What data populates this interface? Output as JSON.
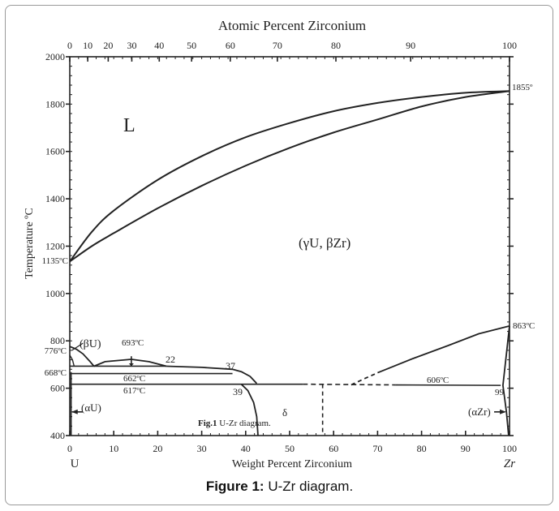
{
  "figure": {
    "top_axis_title": "Atomic Percent Zirconium",
    "bottom_axis_title": "Weight Percent Zirconium",
    "y_axis_title": "Temperature ºC",
    "left_element": "U",
    "right_element": "Zr",
    "inner_caption_bold": "Fig.1",
    "inner_caption_text": " U-Zr diagram.",
    "caption_label": "Figure 1:",
    "caption_text": " U-Zr diagram."
  },
  "chart_data": {
    "type": "phase-diagram",
    "x_bottom": {
      "label": "Weight Percent Zirconium",
      "range": [
        0,
        100
      ],
      "ticks": [
        "0",
        "10",
        "20",
        "30",
        "40",
        "50",
        "60",
        "70",
        "80",
        "90",
        "100"
      ]
    },
    "x_top": {
      "label": "Atomic Percent Zirconium",
      "ticks": [
        "0",
        "10",
        "20",
        "30",
        "40",
        "50",
        "60",
        "70",
        "80",
        "90",
        "100"
      ]
    },
    "y": {
      "label": "Temperature ºC",
      "range": [
        400,
        2000
      ],
      "ticks": [
        "400",
        "600",
        "800",
        "1000",
        "1200",
        "1400",
        "1600",
        "1800",
        "2000"
      ]
    },
    "phase_labels": {
      "liquid": "L",
      "bcc": "(γU, βZr)",
      "beta_u": "(βU)",
      "alpha_u": "(αU)",
      "delta": "δ",
      "alpha_zr": "(αZr)"
    },
    "annotations": {
      "t_u_melt": "1135ºC",
      "t_zr_melt": "1855º",
      "t_776": "776ºC",
      "t_668": "668ºC",
      "t_693": "693ºC",
      "t_662": "662ºC",
      "t_617": "617ºC",
      "t_606": "606ºC",
      "t_863": "863ºC",
      "c_22": "22",
      "c_37": "37",
      "c_39": "39",
      "c_99": "99"
    },
    "liquidus": [
      [
        0,
        1135
      ],
      [
        5,
        1260
      ],
      [
        10,
        1350
      ],
      [
        20,
        1480
      ],
      [
        30,
        1580
      ],
      [
        40,
        1660
      ],
      [
        50,
        1720
      ],
      [
        60,
        1770
      ],
      [
        70,
        1805
      ],
      [
        80,
        1830
      ],
      [
        90,
        1848
      ],
      [
        100,
        1855
      ]
    ],
    "solidus": [
      [
        0,
        1135
      ],
      [
        5,
        1200
      ],
      [
        10,
        1255
      ],
      [
        20,
        1360
      ],
      [
        30,
        1455
      ],
      [
        40,
        1540
      ],
      [
        50,
        1615
      ],
      [
        60,
        1680
      ],
      [
        70,
        1735
      ],
      [
        80,
        1790
      ],
      [
        90,
        1830
      ],
      [
        100,
        1855
      ]
    ]
  }
}
